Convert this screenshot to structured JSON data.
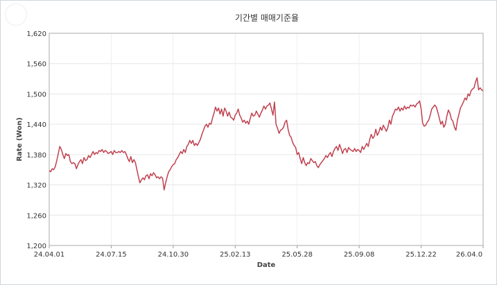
{
  "chart_data": {
    "type": "line",
    "title": "기간별 매매기준율",
    "xlabel": "Date",
    "ylabel": "Rate (Won)",
    "ylim": [
      1200,
      1620
    ],
    "yticks": [
      1200,
      1260,
      1320,
      1380,
      1440,
      1500,
      1560,
      1620
    ],
    "ytick_labels": [
      "1,200",
      "1,260",
      "1,320",
      "1,380",
      "1,440",
      "1,500",
      "1,560",
      "1,620"
    ],
    "xtick_labels": [
      "24.04.01",
      "24.07.15",
      "24.10.30",
      "25.02.13",
      "25.05.28",
      "25.09.08",
      "25.12.22",
      "26.04.0"
    ],
    "grid": true,
    "line_color": "#c0404f",
    "series": [
      {
        "values": [
          1348,
          1346,
          1352,
          1350,
          1356,
          1368,
          1382,
          1396,
          1390,
          1380,
          1372,
          1382,
          1378,
          1380,
          1366,
          1362,
          1364,
          1362,
          1352,
          1360,
          1366,
          1370,
          1362,
          1374,
          1368,
          1370,
          1378,
          1374,
          1380,
          1386,
          1380,
          1384,
          1382,
          1388,
          1386,
          1390,
          1384,
          1388,
          1386,
          1382,
          1384,
          1386,
          1380,
          1388,
          1384,
          1384,
          1386,
          1384,
          1388,
          1384,
          1386,
          1380,
          1372,
          1366,
          1376,
          1364,
          1370,
          1364,
          1350,
          1336,
          1324,
          1330,
          1334,
          1330,
          1338,
          1340,
          1332,
          1342,
          1338,
          1344,
          1340,
          1334,
          1336,
          1332,
          1336,
          1333,
          1310,
          1324,
          1336,
          1346,
          1350,
          1356,
          1360,
          1362,
          1370,
          1374,
          1380,
          1386,
          1382,
          1390,
          1384,
          1396,
          1400,
          1408,
          1402,
          1408,
          1398,
          1402,
          1398,
          1404,
          1410,
          1420,
          1428,
          1436,
          1440,
          1434,
          1442,
          1440,
          1452,
          1462,
          1474,
          1466,
          1472,
          1460,
          1470,
          1456,
          1472,
          1466,
          1456,
          1464,
          1454,
          1452,
          1448,
          1458,
          1462,
          1470,
          1458,
          1452,
          1444,
          1448,
          1442,
          1446,
          1440,
          1452,
          1462,
          1456,
          1458,
          1466,
          1460,
          1454,
          1462,
          1468,
          1476,
          1470,
          1476,
          1478,
          1482,
          1470,
          1458,
          1484,
          1440,
          1432,
          1422,
          1428,
          1430,
          1434,
          1444,
          1448,
          1430,
          1418,
          1414,
          1404,
          1398,
          1394,
          1380,
          1384,
          1372,
          1362,
          1374,
          1364,
          1358,
          1364,
          1362,
          1372,
          1368,
          1364,
          1366,
          1358,
          1354,
          1360,
          1364,
          1368,
          1372,
          1378,
          1374,
          1380,
          1384,
          1376,
          1386,
          1392,
          1396,
          1388,
          1400,
          1392,
          1382,
          1390,
          1392,
          1384,
          1394,
          1390,
          1388,
          1386,
          1392,
          1386,
          1390,
          1388,
          1384,
          1396,
          1390,
          1396,
          1402,
          1396,
          1410,
          1420,
          1412,
          1416,
          1430,
          1418,
          1424,
          1434,
          1428,
          1438,
          1432,
          1426,
          1434,
          1448,
          1440,
          1456,
          1462,
          1470,
          1468,
          1474,
          1466,
          1472,
          1468,
          1476,
          1470,
          1474,
          1472,
          1478,
          1476,
          1478,
          1474,
          1480,
          1482,
          1486,
          1470,
          1442,
          1436,
          1438,
          1444,
          1448,
          1458,
          1470,
          1474,
          1478,
          1474,
          1464,
          1452,
          1440,
          1446,
          1434,
          1440,
          1456,
          1468,
          1462,
          1450,
          1446,
          1434,
          1428,
          1448,
          1460,
          1472,
          1478,
          1484,
          1492,
          1488,
          1500,
          1496,
          1506,
          1510,
          1512,
          1524,
          1532,
          1508,
          1512,
          1508,
          1506
        ]
      }
    ]
  }
}
